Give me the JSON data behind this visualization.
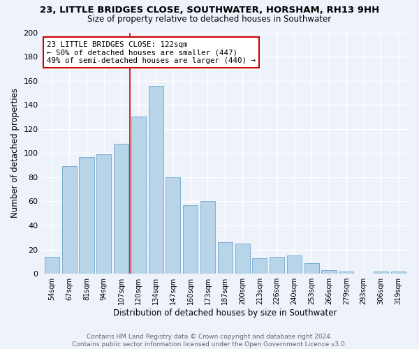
{
  "title": "23, LITTLE BRIDGES CLOSE, SOUTHWATER, HORSHAM, RH13 9HH",
  "subtitle": "Size of property relative to detached houses in Southwater",
  "xlabel": "Distribution of detached houses by size in Southwater",
  "ylabel": "Number of detached properties",
  "bar_color": "#b8d4e8",
  "bar_edge_color": "#7aafd4",
  "categories": [
    "54sqm",
    "67sqm",
    "81sqm",
    "94sqm",
    "107sqm",
    "120sqm",
    "134sqm",
    "147sqm",
    "160sqm",
    "173sqm",
    "187sqm",
    "200sqm",
    "213sqm",
    "226sqm",
    "240sqm",
    "253sqm",
    "266sqm",
    "279sqm",
    "293sqm",
    "306sqm",
    "319sqm"
  ],
  "values": [
    14,
    89,
    97,
    99,
    108,
    130,
    156,
    80,
    57,
    60,
    26,
    25,
    13,
    14,
    15,
    9,
    3,
    2,
    0,
    2,
    2
  ],
  "annotation_lines": [
    "23 LITTLE BRIDGES CLOSE: 122sqm",
    "← 50% of detached houses are smaller (447)",
    "49% of semi-detached houses are larger (440) →"
  ],
  "red_line_x": 4.5,
  "ylim": [
    0,
    200
  ],
  "yticks": [
    0,
    20,
    40,
    60,
    80,
    100,
    120,
    140,
    160,
    180,
    200
  ],
  "footer_line1": "Contains HM Land Registry data © Crown copyright and database right 2024.",
  "footer_line2": "Contains public sector information licensed under the Open Government Licence v3.0.",
  "background_color": "#eef2fb",
  "grid_color": "#ffffff",
  "annotation_box_edge_color": "#cc0000",
  "annotation_line_color": "#cc0000"
}
